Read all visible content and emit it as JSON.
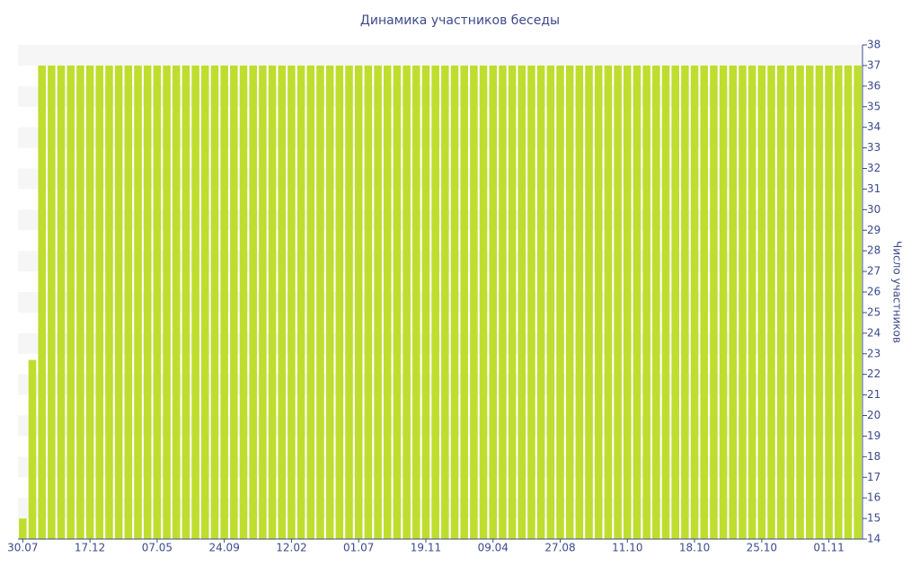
{
  "chart_data": {
    "type": "bar",
    "title": "Динамика участников беседы",
    "y_label": "Число участников",
    "categories": [
      "30.07",
      null,
      null,
      null,
      null,
      null,
      null,
      "17.12",
      null,
      null,
      null,
      null,
      null,
      null,
      "07.05",
      null,
      null,
      null,
      null,
      null,
      null,
      "24.09",
      null,
      null,
      null,
      null,
      null,
      null,
      "12.02",
      null,
      null,
      null,
      null,
      null,
      null,
      "01.07",
      null,
      null,
      null,
      null,
      null,
      null,
      "19.11",
      null,
      null,
      null,
      null,
      null,
      null,
      "09.04",
      null,
      null,
      null,
      null,
      null,
      null,
      "27.08",
      null,
      null,
      null,
      null,
      null,
      null,
      "11.10",
      null,
      null,
      null,
      null,
      null,
      null,
      "18.10",
      null,
      null,
      null,
      null,
      null,
      null,
      "25.10",
      null,
      null,
      null,
      null,
      null,
      null,
      "01.11",
      null,
      null,
      null
    ],
    "values": [
      15,
      22.7,
      37,
      37,
      37,
      37,
      37,
      37,
      37,
      37,
      37,
      37,
      37,
      37,
      37,
      37,
      37,
      37,
      37,
      37,
      37,
      37,
      37,
      37,
      37,
      37,
      37,
      37,
      37,
      37,
      37,
      37,
      37,
      37,
      37,
      37,
      37,
      37,
      37,
      37,
      37,
      37,
      37,
      37,
      37,
      37,
      37,
      37,
      37,
      37,
      37,
      37,
      37,
      37,
      37,
      37,
      37,
      37,
      37,
      37,
      37,
      37,
      37,
      37,
      37,
      37,
      37,
      37,
      37,
      37,
      37,
      37,
      37,
      37,
      37,
      37,
      37,
      37,
      37,
      37,
      37,
      37,
      37,
      37,
      37,
      37,
      37,
      37
    ],
    "color": "#bfdd2e",
    "ylim": [
      14,
      38
    ],
    "yticks": [
      14,
      15,
      16,
      17,
      18,
      19,
      20,
      21,
      22,
      23,
      24,
      25,
      26,
      27,
      28,
      29,
      30,
      31,
      32,
      33,
      34,
      35,
      36,
      37,
      38
    ],
    "grid": true,
    "y_axis_side": "right"
  }
}
